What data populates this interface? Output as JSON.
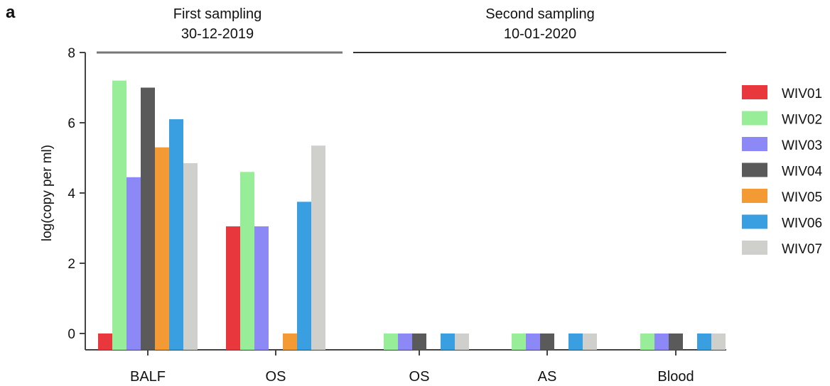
{
  "panel_label": "a",
  "groups": [
    {
      "title": "First sampling",
      "date": "30-12-2019"
    },
    {
      "title": "Second sampling",
      "date": "10-01-2020"
    }
  ],
  "chart_data": {
    "type": "bar",
    "title": "",
    "xlabel": "",
    "ylabel": "log(copy per ml)",
    "ylim": [
      0,
      8
    ],
    "yticks": [
      0,
      2,
      4,
      6,
      8
    ],
    "categories": [
      "BALF",
      "OS",
      "OS",
      "AS",
      "Blood"
    ],
    "series": [
      {
        "name": "WIV01",
        "color": "#e8383d",
        "values": [
          0,
          3.05,
          null,
          null,
          null
        ]
      },
      {
        "name": "WIV02",
        "color": "#98ee98",
        "values": [
          7.2,
          4.6,
          0,
          0,
          0
        ]
      },
      {
        "name": "WIV03",
        "color": "#8c88f5",
        "values": [
          4.45,
          3.05,
          0,
          0,
          0
        ]
      },
      {
        "name": "WIV04",
        "color": "#5a5a5a",
        "values": [
          7.0,
          null,
          0,
          0,
          0
        ]
      },
      {
        "name": "WIV05",
        "color": "#f39a35",
        "values": [
          5.3,
          0,
          null,
          null,
          null
        ]
      },
      {
        "name": "WIV06",
        "color": "#3a9fe0",
        "values": [
          6.1,
          3.75,
          0,
          0,
          0
        ]
      },
      {
        "name": "WIV07",
        "color": "#cfcfcb",
        "values": [
          4.85,
          5.35,
          0,
          0,
          0
        ]
      }
    ],
    "legend_position": "right",
    "grid": false
  }
}
